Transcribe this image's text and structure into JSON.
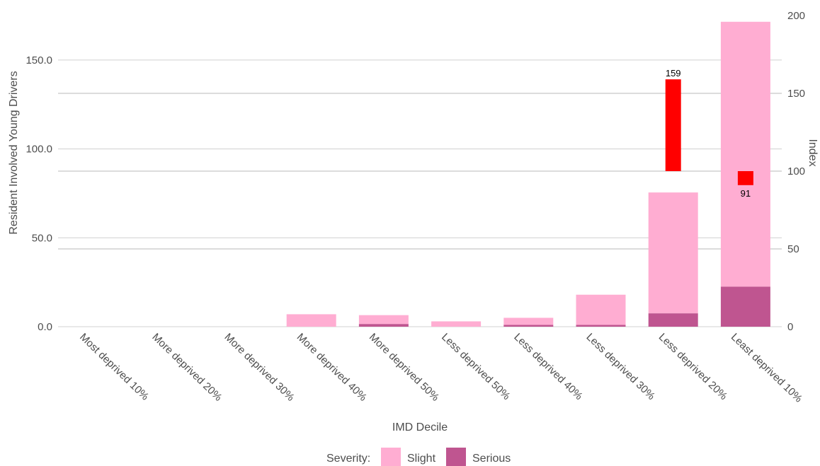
{
  "chart_data": {
    "type": "bar",
    "stacked": true,
    "xlabel": "IMD Decile",
    "ylabel": "Resident Involved Young Drivers",
    "y2label": "Index",
    "categories": [
      "Most deprived 10%",
      "More deprived 20%",
      "More deprived 30%",
      "More deprived 40%",
      "More deprived 50%",
      "Less deprived 50%",
      "Less deprived 40%",
      "Less deprived 30%",
      "Less deprived 20%",
      "Least deprived 10%"
    ],
    "series": [
      {
        "name": "Slight",
        "color": "#ffadd2",
        "values": [
          0,
          0,
          0,
          7,
          5,
          3,
          4,
          17,
          68,
          149
        ]
      },
      {
        "name": "Serious",
        "color": "#bf5590",
        "values": [
          0,
          0,
          0,
          0,
          1.5,
          0,
          1,
          1,
          7.5,
          22.5
        ]
      }
    ],
    "ylim": [
      0,
      175
    ],
    "yticks": [
      "0.0",
      "50.0",
      "100.0",
      "150.0"
    ],
    "y2lim": [
      0,
      200
    ],
    "y2ticks": [
      "0",
      "50",
      "100",
      "150",
      "200"
    ],
    "index": {
      "color": "#ff0000",
      "baseline": 100,
      "points": [
        {
          "category": "Less deprived 20%",
          "value": 159,
          "label": "159"
        },
        {
          "category": "Least deprived 10%",
          "value": 91,
          "label": "91"
        }
      ]
    },
    "grid": true,
    "legend": {
      "title": "Severity:",
      "position": "bottom",
      "entries": [
        {
          "label": "Slight",
          "color": "#ffadd2"
        },
        {
          "label": "Serious",
          "color": "#bf5590"
        }
      ]
    }
  }
}
